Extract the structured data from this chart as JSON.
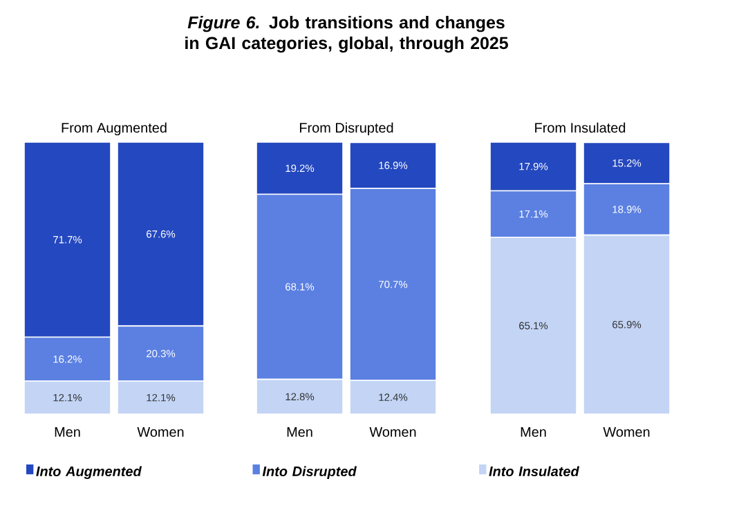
{
  "chart_data": [
    {
      "type": "bar",
      "stacked": true,
      "subtitle": "From Augmented",
      "categories": [
        "Men",
        "Women"
      ],
      "legend": "bottom",
      "series": [
        {
          "name": "Into Insulated",
          "color": "#c3d4f5",
          "values": [
            12.1,
            12.1
          ],
          "value_labels": [
            "12.1%",
            "12.1%"
          ]
        },
        {
          "name": "Into Disrupted",
          "color": "#5b80e2",
          "values": [
            16.2,
            20.3
          ],
          "value_labels": [
            "16.2%",
            "20.3%"
          ]
        },
        {
          "name": "Into Augmented",
          "color": "#2448bf",
          "values": [
            71.7,
            67.6
          ],
          "value_labels": [
            "71.7%",
            "67.6%"
          ]
        }
      ]
    },
    {
      "type": "bar",
      "stacked": true,
      "title": "*Figure 6.* Job transitions and changes in GAI categories, global, through 2025",
      "subtitle": "From Disrupted",
      "categories": [
        "Men",
        "Women"
      ],
      "series": [
        {
          "color": "#c3d4f5",
          "values": [
            12.8,
            12.4
          ],
          "value_labels": [
            "12.8%",
            "12.4%"
          ]
        },
        {
          "color": "#5b80e2",
          "values": [
            68.1,
            70.7
          ],
          "value_labels": [
            "68.1%",
            "70.7%"
          ]
        },
        {
          "color": "#2448bf",
          "values": [
            19.2,
            16.9
          ],
          "value_labels": [
            "19.2%",
            "16.9%"
          ]
        }
      ]
    },
    {
      "type": "bar",
      "stacked": true,
      "subtitle": "From Insulated",
      "categories": [
        "Men",
        "Women"
      ],
      "series": [
        {
          "color": "#c3d4f5",
          "values": [
            65.1,
            65.9
          ],
          "value_labels": [
            "65.1%",
            "65.9%"
          ]
        },
        {
          "color": "#5b80e2",
          "values": [
            17.1,
            18.9
          ],
          "value_labels": [
            "17.1%",
            "18.9%"
          ]
        },
        {
          "color": "#2448bf",
          "values": [
            17.9,
            15.2
          ],
          "value_labels": [
            "17.9%",
            "15.2%"
          ]
        }
      ]
    }
  ]
}
